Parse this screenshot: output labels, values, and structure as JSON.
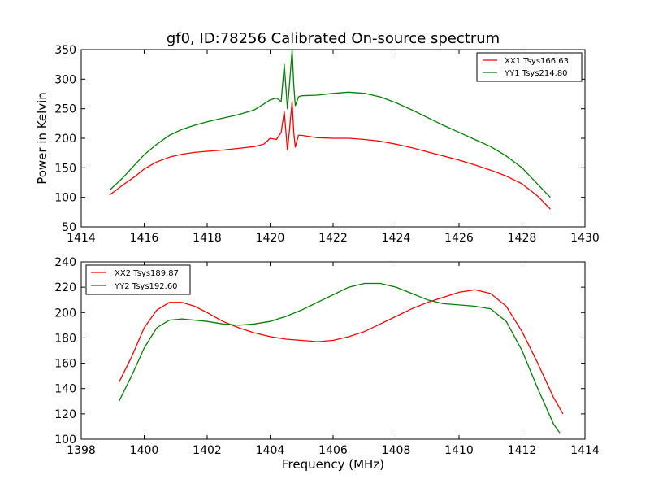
{
  "chart_data": [
    {
      "type": "line",
      "title": "gf0, ID:78256 Calibrated On-source spectrum",
      "xlabel": "",
      "ylabel": "Power in Kelvin",
      "xlim": [
        1414,
        1430
      ],
      "ylim": [
        50,
        350
      ],
      "xticks": [
        1414,
        1416,
        1418,
        1420,
        1422,
        1424,
        1426,
        1428,
        1430
      ],
      "yticks": [
        50,
        100,
        150,
        200,
        250,
        300,
        350
      ],
      "legend_position": "top-right",
      "series": [
        {
          "name": "XX1 Tsys166.63",
          "color": "#ff0000",
          "x": [
            1414.9,
            1415.3,
            1415.7,
            1416.0,
            1416.4,
            1416.8,
            1417.2,
            1417.6,
            1418.0,
            1418.5,
            1419.0,
            1419.5,
            1419.8,
            1420.0,
            1420.2,
            1420.35,
            1420.45,
            1420.55,
            1420.6,
            1420.7,
            1420.75,
            1420.8,
            1420.9,
            1421.0,
            1421.5,
            1422.0,
            1422.5,
            1423.0,
            1423.5,
            1424.0,
            1424.5,
            1425.0,
            1425.5,
            1426.0,
            1426.5,
            1427.0,
            1427.5,
            1428.0,
            1428.5,
            1428.9
          ],
          "y": [
            104,
            120,
            135,
            148,
            160,
            168,
            173,
            176,
            178,
            180,
            183,
            186,
            190,
            200,
            198,
            210,
            245,
            180,
            205,
            262,
            210,
            185,
            205,
            205,
            201,
            200,
            200,
            198,
            195,
            190,
            184,
            177,
            170,
            163,
            155,
            146,
            136,
            123,
            102,
            80
          ]
        },
        {
          "name": "YY1 Tsys214.80",
          "color": "#008000",
          "x": [
            1414.9,
            1415.3,
            1415.7,
            1416.0,
            1416.4,
            1416.8,
            1417.2,
            1417.6,
            1418.0,
            1418.5,
            1419.0,
            1419.5,
            1419.8,
            1420.0,
            1420.2,
            1420.35,
            1420.45,
            1420.55,
            1420.6,
            1420.7,
            1420.75,
            1420.8,
            1420.9,
            1421.0,
            1421.5,
            1422.0,
            1422.5,
            1423.0,
            1423.5,
            1424.0,
            1424.5,
            1425.0,
            1425.5,
            1426.0,
            1426.5,
            1427.0,
            1427.5,
            1428.0,
            1428.5,
            1428.9
          ],
          "y": [
            112,
            132,
            155,
            172,
            190,
            205,
            215,
            222,
            228,
            234,
            240,
            248,
            258,
            265,
            268,
            262,
            325,
            250,
            280,
            350,
            290,
            255,
            270,
            272,
            273,
            276,
            278,
            276,
            270,
            260,
            248,
            235,
            222,
            210,
            198,
            186,
            170,
            150,
            122,
            100
          ]
        }
      ]
    },
    {
      "type": "line",
      "title": "",
      "xlabel": "Frequency (MHz)",
      "ylabel": "",
      "xlim": [
        1398,
        1414
      ],
      "ylim": [
        100,
        240
      ],
      "xticks": [
        1398,
        1400,
        1402,
        1404,
        1406,
        1408,
        1410,
        1412,
        1414
      ],
      "yticks": [
        100,
        120,
        140,
        160,
        180,
        200,
        220,
        240
      ],
      "legend_position": "top-left",
      "series": [
        {
          "name": "XX2 Tsys189.87",
          "color": "#ff0000",
          "x": [
            1399.2,
            1399.6,
            1400.0,
            1400.4,
            1400.8,
            1401.2,
            1401.6,
            1402.0,
            1402.5,
            1403.0,
            1403.5,
            1404.0,
            1404.5,
            1405.0,
            1405.5,
            1406.0,
            1406.5,
            1407.0,
            1407.5,
            1408.0,
            1408.5,
            1409.0,
            1409.5,
            1410.0,
            1410.5,
            1411.0,
            1411.5,
            1412.0,
            1412.5,
            1413.0,
            1413.3
          ],
          "y": [
            145,
            165,
            188,
            202,
            208,
            208,
            205,
            200,
            193,
            188,
            184,
            181,
            179,
            178,
            177,
            178,
            181,
            185,
            191,
            197,
            203,
            208,
            212,
            216,
            218,
            215,
            205,
            185,
            160,
            133,
            120
          ]
        },
        {
          "name": "YY2 Tsys192.60",
          "color": "#008000",
          "x": [
            1399.2,
            1399.6,
            1400.0,
            1400.4,
            1400.8,
            1401.2,
            1401.6,
            1402.0,
            1402.5,
            1403.0,
            1403.5,
            1404.0,
            1404.5,
            1405.0,
            1405.5,
            1406.0,
            1406.5,
            1407.0,
            1407.5,
            1408.0,
            1408.5,
            1409.0,
            1409.5,
            1410.0,
            1410.5,
            1411.0,
            1411.5,
            1412.0,
            1412.5,
            1413.0,
            1413.2
          ],
          "y": [
            130,
            150,
            172,
            188,
            194,
            195,
            194,
            193,
            191,
            190,
            191,
            193,
            197,
            202,
            208,
            214,
            220,
            223,
            223,
            220,
            215,
            210,
            207,
            206,
            205,
            203,
            193,
            170,
            140,
            112,
            105
          ]
        }
      ]
    }
  ]
}
